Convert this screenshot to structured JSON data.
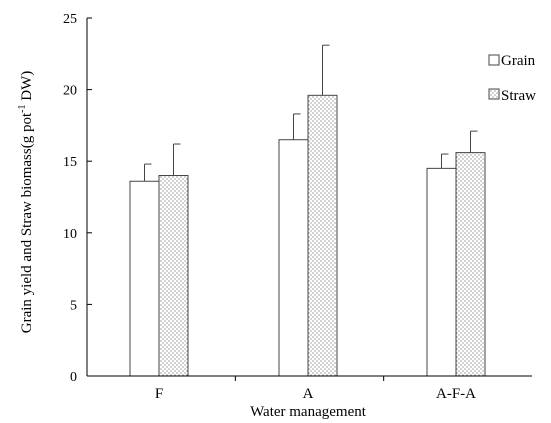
{
  "chart_data": {
    "type": "bar",
    "title": "",
    "xlabel": "Water management",
    "ylabel_main": "Grain yield and Straw biomass(g pot",
    "ylabel_sup": "-1",
    "ylabel_tail": " DW)",
    "ylim": [
      0,
      25
    ],
    "yticks": [
      "0",
      "5",
      "10",
      "15",
      "20",
      "25"
    ],
    "categories": [
      "F",
      "A",
      "A-F-A"
    ],
    "series": [
      {
        "name": "Grain",
        "values": [
          13.6,
          16.5,
          14.5
        ],
        "errors": [
          1.2,
          1.8,
          1.0
        ],
        "fill": "#ffffff"
      },
      {
        "name": "Straw",
        "values": [
          14.0,
          19.6,
          15.6
        ],
        "errors": [
          2.2,
          3.5,
          1.5
        ],
        "fill": "dotted"
      }
    ],
    "grid": false,
    "legend": "top-right",
    "colors": {
      "axis": "#000000",
      "bar_stroke": "#444444",
      "dot": "#777777"
    }
  }
}
